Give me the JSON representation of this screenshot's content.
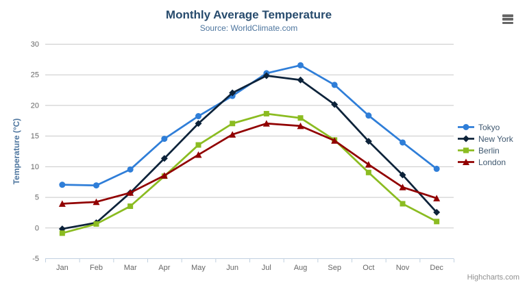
{
  "credits": "Highcharts.com",
  "export_menu_tooltip": "Chart context menu",
  "colors": {
    "title": "#274b6d",
    "subtitle": "#4d759e",
    "axis_title": "#4d759e",
    "tick_label": "#666666",
    "grid_line": "#c8c8c8",
    "axis_line": "#c0d0e0",
    "legend_text": "#3e576f",
    "credits_text": "#909090",
    "menu_icon": "#666666"
  },
  "chart_data": {
    "type": "line",
    "title": "Monthly Average Temperature",
    "subtitle": "Source: WorldClimate.com",
    "xlabel": "",
    "ylabel": "Temperature (°C)",
    "ylim": [
      -5,
      30
    ],
    "ytick_step": 5,
    "grid": true,
    "legend_position": "right",
    "categories": [
      "Jan",
      "Feb",
      "Mar",
      "Apr",
      "May",
      "Jun",
      "Jul",
      "Aug",
      "Sep",
      "Oct",
      "Nov",
      "Dec"
    ],
    "series": [
      {
        "name": "Tokyo",
        "color": "#2f7ed8",
        "marker": "circle",
        "values": [
          7.0,
          6.9,
          9.5,
          14.5,
          18.2,
          21.5,
          25.2,
          26.5,
          23.3,
          18.3,
          13.9,
          9.6
        ]
      },
      {
        "name": "New York",
        "color": "#0d233a",
        "marker": "diamond",
        "values": [
          -0.2,
          0.8,
          5.7,
          11.3,
          17.0,
          22.0,
          24.8,
          24.1,
          20.1,
          14.1,
          8.6,
          2.5
        ]
      },
      {
        "name": "Berlin",
        "color": "#8bbc21",
        "marker": "square",
        "values": [
          -0.9,
          0.6,
          3.5,
          8.4,
          13.5,
          17.0,
          18.6,
          17.9,
          14.3,
          9.0,
          3.9,
          1.0
        ]
      },
      {
        "name": "London",
        "color": "#910000",
        "marker": "triangle",
        "values": [
          3.9,
          4.2,
          5.7,
          8.5,
          11.9,
          15.2,
          17.0,
          16.6,
          14.2,
          10.3,
          6.6,
          4.8
        ]
      }
    ]
  }
}
